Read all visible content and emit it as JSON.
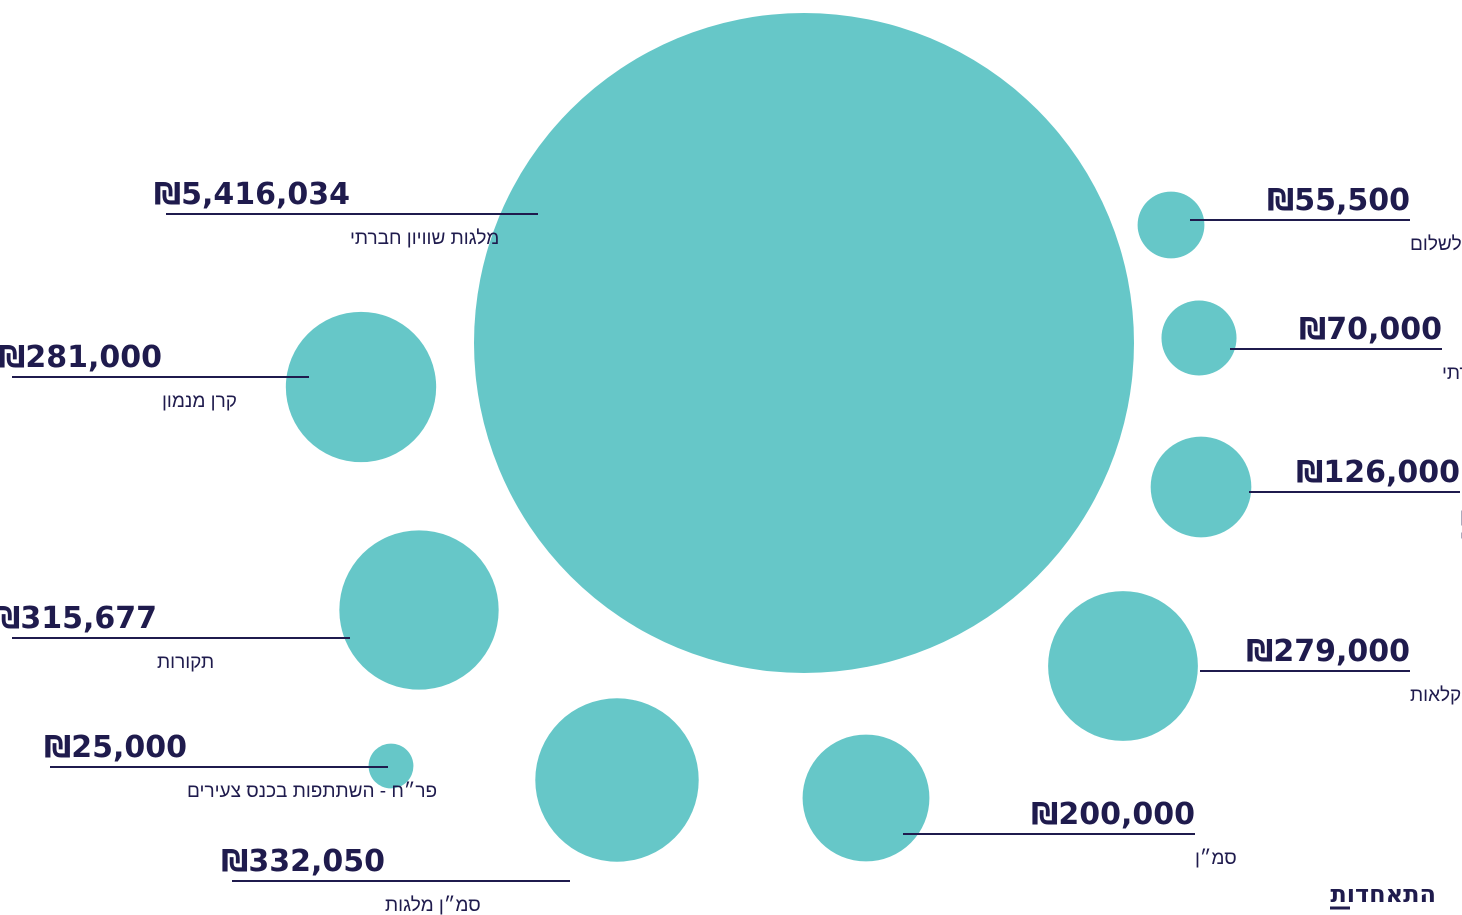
{
  "chart_data": {
    "type": "bubble",
    "colors": {
      "bubble": "#66c7c8",
      "text": "#1f1b4d"
    },
    "items": [
      {
        "id": "melagot",
        "label": "מלגות שוויון חברתי",
        "value": 5416034,
        "display": "₪5,416,034"
      },
      {
        "id": "peres",
        "label": "מרכז פרס לשלום",
        "value": 55500,
        "display": "₪55,500"
      },
      {
        "id": "hachsharot",
        "label": "הכשרות שוויון חברתי",
        "value": 70000,
        "display": "₪70,000"
      },
      {
        "id": "rakezet",
        "label": "שכר רכזת שוויון\nחברתי",
        "value": 126000,
        "display": "₪126,000"
      },
      {
        "id": "agriculture",
        "label": "משרד החקלאות",
        "value": 279000,
        "display": "₪279,000"
      },
      {
        "id": "samen",
        "label": "סמ״ן",
        "value": 200000,
        "display": "₪200,000"
      },
      {
        "id": "samen-melagot",
        "label": "סמ״ן מלגות",
        "value": 332050,
        "display": "₪332,050"
      },
      {
        "id": "perach",
        "label": "פר״ח - השתתפות בכנס צעירים",
        "value": 25000,
        "display": "₪25,000"
      },
      {
        "id": "takurot",
        "label": "תקורות",
        "value": 315677,
        "display": "₪315,677"
      },
      {
        "id": "keren",
        "label": "קרן מנמון",
        "value": 281000,
        "display": "₪281,000"
      }
    ]
  },
  "logo": {
    "text": "התאחדות"
  }
}
